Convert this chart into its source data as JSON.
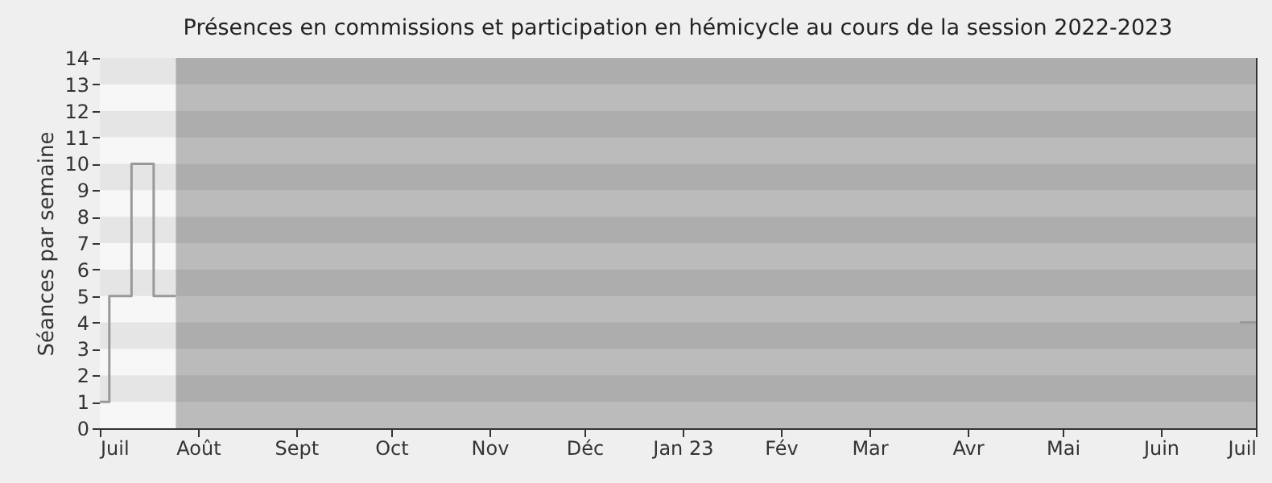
{
  "chart_data": {
    "type": "step",
    "title": "Présences en commissions et participation en hémicycle au cours de la session 2022-2023",
    "ylabel": "Séances par semaine",
    "x": [
      "2022-07-01",
      "2022-07-04",
      "2022-07-11",
      "2022-07-18",
      "2022-07-25",
      "2022-07-26",
      "2023-06-26",
      "2023-07-01"
    ],
    "series": [
      {
        "color": "#999999",
        "values": [
          1,
          5,
          10,
          5,
          5,
          null,
          4,
          4
        ]
      }
    ],
    "xlim": [
      "2022-07-01",
      "2023-07-01"
    ],
    "xticks": [
      {
        "value": "2022-07-01",
        "label": "Juil"
      },
      {
        "value": "2022-08-01",
        "label": "Août"
      },
      {
        "value": "2022-09-01",
        "label": "Sept"
      },
      {
        "value": "2022-10-01",
        "label": "Oct"
      },
      {
        "value": "2022-11-01",
        "label": "Nov"
      },
      {
        "value": "2022-12-01",
        "label": "Déc"
      },
      {
        "value": "2023-01-01",
        "label": "Jan 23"
      },
      {
        "value": "2023-02-01",
        "label": "Fév"
      },
      {
        "value": "2023-03-01",
        "label": "Mar"
      },
      {
        "value": "2023-04-01",
        "label": "Avr"
      },
      {
        "value": "2023-05-01",
        "label": "Mai"
      },
      {
        "value": "2023-06-01",
        "label": "Juin"
      },
      {
        "value": "2023-07-01",
        "label": "Juil"
      }
    ],
    "ylim": [
      0,
      14
    ],
    "yticks": [
      0,
      1,
      2,
      3,
      4,
      5,
      6,
      7,
      8,
      9,
      10,
      11,
      12,
      13,
      14
    ],
    "bands": [
      {
        "axis": "x",
        "from": "2022-07-25",
        "to": "2023-07-01",
        "color": "#bbbbbb"
      }
    ]
  }
}
